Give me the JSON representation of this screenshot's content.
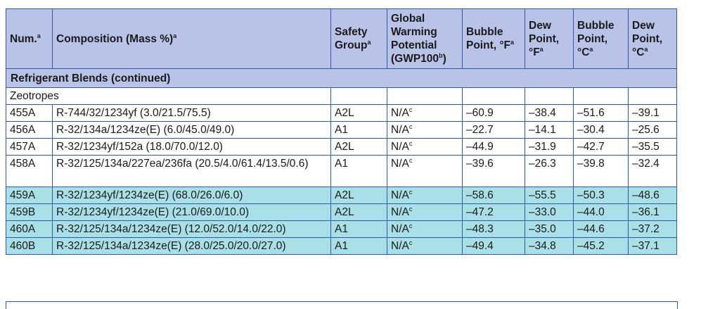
{
  "table": {
    "title": "Refrigerant Blends (continued)",
    "headers": [
      {
        "text": "Num.",
        "sup": "a"
      },
      {
        "text": "Composition (Mass %)",
        "sup": "a"
      },
      {
        "text": "Safety Group",
        "sup": "a"
      },
      {
        "text": "Global Warming Potential (GWP100",
        "sup": "b",
        "after": ")"
      },
      {
        "text": "Bubble Point, °F",
        "sup": "a"
      },
      {
        "text": "Dew Point, °F",
        "sup": "a"
      },
      {
        "text": "Bubble Point, °C",
        "sup": "a"
      },
      {
        "text": "Dew Point, °C",
        "sup": "a"
      }
    ],
    "section": "Zeotropes",
    "rows": [
      {
        "num": "455A",
        "comp": "R-744/32/1234yf (3.0/21.5/75.5)",
        "safety": "A2L",
        "gwp": "N/A",
        "gwp_sup": "c",
        "bp_f": "–60.9",
        "dp_f": "–38.4",
        "bp_c": "–51.6",
        "dp_c": "–39.1",
        "style": "white"
      },
      {
        "num": "456A",
        "comp": "R-32/134a/1234ze(E) (6.0/45.0/49.0)",
        "safety": "A1",
        "gwp": "N/A",
        "gwp_sup": "c",
        "bp_f": "–22.7",
        "dp_f": "–14.1",
        "bp_c": "–30.4",
        "dp_c": "–25.6",
        "style": "white"
      },
      {
        "num": "457A",
        "comp": "R-32/1234yf/152a (18.0/70.0/12.0)",
        "safety": "A2L",
        "gwp": "N/A",
        "gwp_sup": "c",
        "bp_f": "–44.9",
        "dp_f": "–31.9",
        "bp_c": "–42.7",
        "dp_c": "–35.5",
        "style": "white"
      },
      {
        "num": "458A",
        "comp": "R-32/125/134a/227ea/236fa (20.5/4.0/61.4/13.5/0.6)",
        "safety": "A1",
        "gwp": "N/A",
        "gwp_sup": "c",
        "bp_f": "–39.6",
        "dp_f": "–26.3",
        "bp_c": "–39.8",
        "dp_c": "–32.4",
        "style": "white tall"
      },
      {
        "num": "459A",
        "comp": "R-32/1234yf/1234ze(E) (68.0/26.0/6.0)",
        "safety": "A2L",
        "gwp": "N/A",
        "gwp_sup": "c",
        "bp_f": "–58.6",
        "dp_f": "–55.5",
        "bp_c": "–50.3",
        "dp_c": "–48.6",
        "style": "teal"
      },
      {
        "num": "459B",
        "comp": "R-32/1234yf/1234ze(E) (21.0/69.0/10.0)",
        "safety": "A2L",
        "gwp": "N/A",
        "gwp_sup": "c",
        "bp_f": "–47.2",
        "dp_f": "–33.0",
        "bp_c": "–44.0",
        "dp_c": "–36.1",
        "style": "teal"
      },
      {
        "num": "460A",
        "comp": "R-32/125/134a/1234ze(E) (12.0/52.0/14.0/22.0)",
        "safety": "A1",
        "gwp": "N/A",
        "gwp_sup": "c",
        "bp_f": "–48.3",
        "dp_f": "–35.0",
        "bp_c": "–44.6",
        "dp_c": "–37.2",
        "style": "teal"
      },
      {
        "num": "460B",
        "comp": "R-32/125/134a/1234ze(E) (28.0/25.0/20.0/27.0)",
        "safety": "A1",
        "gwp": "N/A",
        "gwp_sup": "c",
        "bp_f": "–49.4",
        "dp_f": "–34.8",
        "bp_c": "–45.2",
        "dp_c": "–37.1",
        "style": "teal"
      }
    ],
    "colors": {
      "header_bg": "#b9c3e8",
      "highlight_bg": "#a9dfe6",
      "border": "#2f5aa6"
    }
  }
}
